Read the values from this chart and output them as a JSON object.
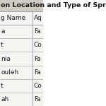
{
  "title": "on Location and Type of Springs in Wa",
  "col1_header": "g Name",
  "col2_header": "Aq",
  "rows": [
    [
      "a",
      "Fa"
    ],
    [
      "t",
      "Co"
    ],
    [
      "nia",
      "Fa"
    ],
    [
      "ouleh",
      "Fa"
    ],
    [
      "t",
      "Co"
    ],
    [
      "ah",
      "Fa"
    ]
  ],
  "bg_color": "#ffffff",
  "title_bg": "#d0ccc5",
  "table_bg": "#f5f4f1",
  "header_bg": "#f5f4f1",
  "row_bg": "#f5f4f1",
  "text_color": "#1a1a1a",
  "border_color": "#999999",
  "title_color": "#1a1a1a",
  "font_size": 6.5,
  "header_font_size": 6.5,
  "title_font_size": 6.8
}
